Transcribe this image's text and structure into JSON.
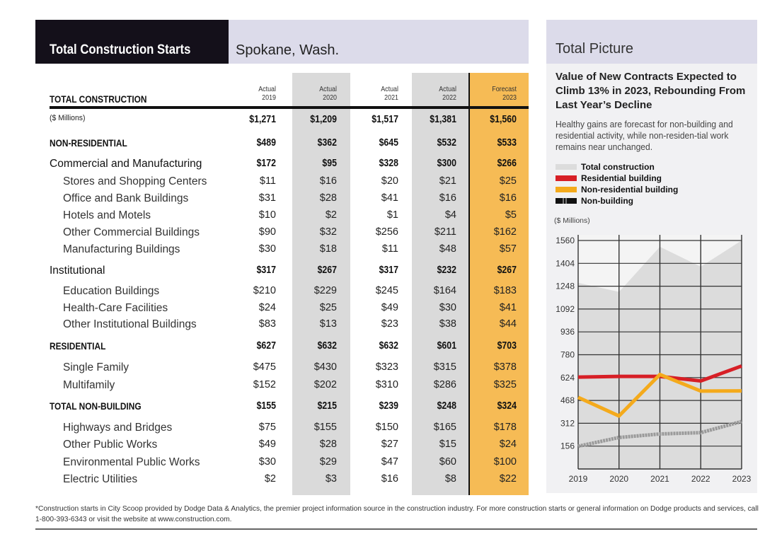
{
  "header": {
    "title": "Total Construction Starts",
    "city": "Spokane, Wash."
  },
  "table": {
    "section_label": "TOTAL CONSTRUCTION",
    "columns": [
      {
        "kind": "Actual",
        "year": "2019"
      },
      {
        "kind": "Actual",
        "year": "2020"
      },
      {
        "kind": "Actual",
        "year": "2021"
      },
      {
        "kind": "Actual",
        "year": "2022"
      },
      {
        "kind": "Forecast",
        "year": "2023"
      }
    ],
    "rows": [
      {
        "label": "($ Millions)",
        "style": "sm",
        "values": [
          "$1,271",
          "$1,209",
          "$1,517",
          "$1,381",
          "$1,560"
        ],
        "bold": true
      },
      {
        "label": "NON-RESIDENTIAL",
        "style": "hd",
        "values": [
          "$489",
          "$362",
          "$645",
          "$532",
          "$533"
        ],
        "bold": true
      },
      {
        "label": "Commercial and Manufacturing",
        "style": "grp",
        "values": [
          "$172",
          "$95",
          "$328",
          "$300",
          "$266"
        ],
        "bold": true
      },
      {
        "label": "Stores and Shopping Centers",
        "style": "sub",
        "values": [
          "$11",
          "$16",
          "$20",
          "$21",
          "$25"
        ],
        "bold": false
      },
      {
        "label": "Office and Bank Buildings",
        "style": "sub",
        "values": [
          "$31",
          "$28",
          "$41",
          "$16",
          "$16"
        ],
        "bold": false
      },
      {
        "label": "Hotels and Motels",
        "style": "sub",
        "values": [
          "$10",
          "$2",
          "$1",
          "$4",
          "$5"
        ],
        "bold": false
      },
      {
        "label": "Other Commercial Buildings",
        "style": "sub",
        "values": [
          "$90",
          "$32",
          "$256",
          "$211",
          "$162"
        ],
        "bold": false
      },
      {
        "label": "Manufacturing Buildings",
        "style": "sub",
        "values": [
          "$30",
          "$18",
          "$11",
          "$48",
          "$57"
        ],
        "bold": false
      },
      {
        "label": "Institutional",
        "style": "grp",
        "values": [
          "$317",
          "$267",
          "$317",
          "$232",
          "$267"
        ],
        "bold": true
      },
      {
        "label": "Education Buildings",
        "style": "sub",
        "values": [
          "$210",
          "$229",
          "$245",
          "$164",
          "$183"
        ],
        "bold": false
      },
      {
        "label": "Health-Care Facilities",
        "style": "sub",
        "values": [
          "$24",
          "$25",
          "$49",
          "$30",
          "$41"
        ],
        "bold": false
      },
      {
        "label": "Other Institutional Buildings",
        "style": "sub",
        "values": [
          "$83",
          "$13",
          "$23",
          "$38",
          "$44"
        ],
        "bold": false
      },
      {
        "label": "RESIDENTIAL",
        "style": "hd",
        "values": [
          "$627",
          "$632",
          "$632",
          "$601",
          "$703"
        ],
        "bold": true
      },
      {
        "label": "Single Family",
        "style": "sub",
        "values": [
          "$475",
          "$430",
          "$323",
          "$315",
          "$378"
        ],
        "bold": false
      },
      {
        "label": "Multifamily",
        "style": "sub",
        "values": [
          "$152",
          "$202",
          "$310",
          "$286",
          "$325"
        ],
        "bold": false
      },
      {
        "label": "TOTAL NON-BUILDING",
        "style": "hd",
        "values": [
          "$155",
          "$215",
          "$239",
          "$248",
          "$324"
        ],
        "bold": true
      },
      {
        "label": "Highways and Bridges",
        "style": "sub",
        "values": [
          "$75",
          "$155",
          "$150",
          "$165",
          "$178"
        ],
        "bold": false
      },
      {
        "label": "Other Public Works",
        "style": "sub",
        "values": [
          "$49",
          "$28",
          "$27",
          "$15",
          "$24"
        ],
        "bold": false
      },
      {
        "label": "Environmental Public Works",
        "style": "sub",
        "values": [
          "$30",
          "$29",
          "$47",
          "$60",
          "$100"
        ],
        "bold": false
      },
      {
        "label": "Electric Utilities",
        "style": "sub",
        "values": [
          "$2",
          "$3",
          "$16",
          "$8",
          "$22"
        ],
        "bold": false
      }
    ]
  },
  "panel": {
    "title": "Total Picture",
    "headline": "Value of New Contracts Expected to Climb 13% in 2023, Rebounding From Last Year’s Decline",
    "dek": "Healthy gains are forecast for non-building and residential activity, while non-residen-tial work remains near unchanged."
  },
  "chart_data": {
    "type": "line",
    "ylabel": "($ Millions)",
    "x": [
      "2019",
      "2020",
      "2021",
      "2022",
      "2023"
    ],
    "yticks": [
      "156",
      "312",
      "468",
      "624",
      "780",
      "936",
      "1092",
      "1248",
      "1404",
      "1560"
    ],
    "ylim": [
      0,
      1560
    ],
    "grid": true,
    "legend_position": "top",
    "series": [
      {
        "name": "Total construction",
        "kind": "area",
        "color": "#dcdcdc",
        "values": [
          1271,
          1209,
          1517,
          1381,
          1560
        ]
      },
      {
        "name": "Residential building",
        "kind": "line",
        "color": "#d71f26",
        "values": [
          627,
          632,
          632,
          601,
          703
        ]
      },
      {
        "name": "Non-residential building",
        "kind": "line",
        "color": "#f4aa1c",
        "values": [
          489,
          362,
          645,
          532,
          533
        ]
      },
      {
        "name": "Non-building",
        "kind": "line",
        "color": "#9a9a9a",
        "values": [
          155,
          215,
          239,
          248,
          324
        ]
      }
    ]
  },
  "footnote": "*Construction starts in City Scoop provided by Dodge Data & Analytics, the premier project information source in the construction industry. For more construction starts or general information on Dodge products and services, call 1-800-393-6343 or visit the website at www.construction.com."
}
